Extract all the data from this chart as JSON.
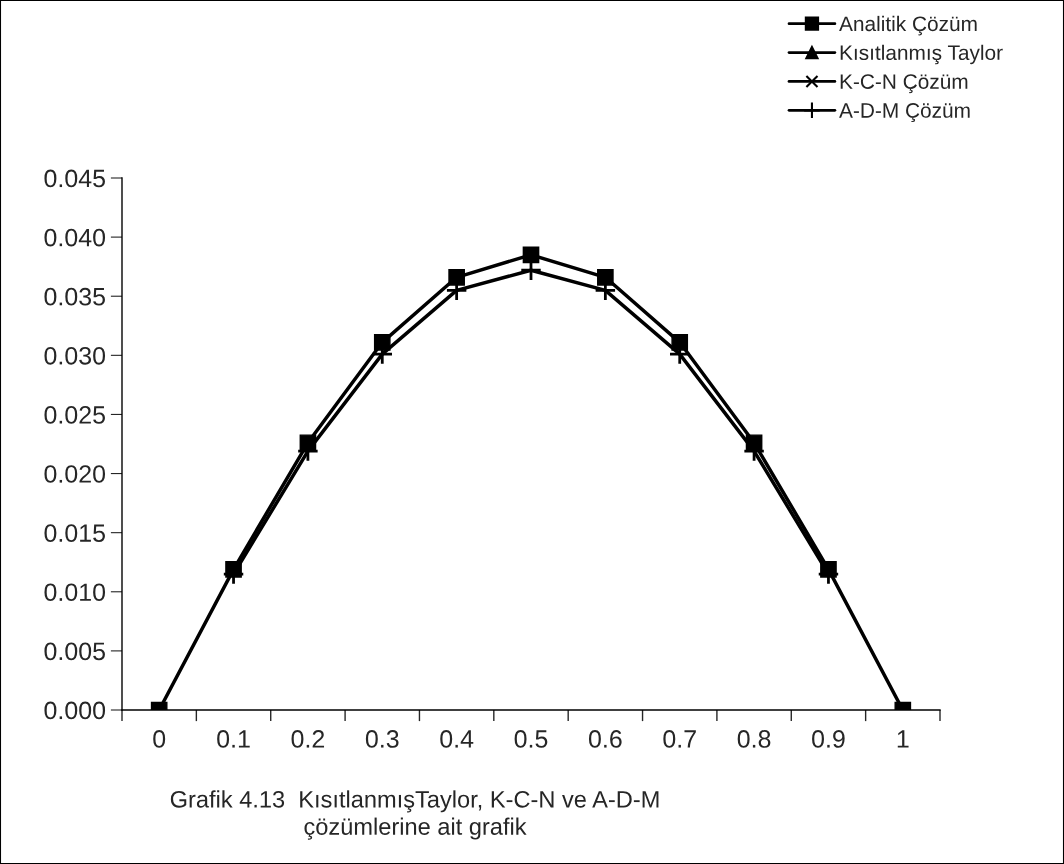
{
  "chart_data": {
    "type": "line",
    "categories": [
      "0",
      "0.1",
      "0.2",
      "0.3",
      "0.4",
      "0.5",
      "0.6",
      "0.7",
      "0.8",
      "0.9",
      "1"
    ],
    "series": [
      {
        "name": "Analitik Çözüm",
        "color": "#000000",
        "marker": "square",
        "values": [
          0.0,
          0.0119,
          0.0226,
          0.0311,
          0.0366,
          0.0385,
          0.0366,
          0.0311,
          0.0226,
          0.0119,
          0.0
        ]
      },
      {
        "name": "Kısıtlanmış Taylor",
        "color": "#000000",
        "marker": "triangle",
        "values": [
          null,
          null,
          null,
          null,
          null,
          null,
          null,
          null,
          null,
          null,
          null
        ]
      },
      {
        "name": "K-C-N Çözüm",
        "color": "#000000",
        "marker": "cross",
        "values": [
          null,
          null,
          null,
          null,
          null,
          null,
          null,
          null,
          null,
          null,
          null
        ]
      },
      {
        "name": "A-D-M Çözüm",
        "color": "#000000",
        "marker": "plus",
        "values": [
          null,
          0.0115,
          0.0219,
          0.0301,
          0.0355,
          0.0372,
          0.0355,
          0.0301,
          0.0219,
          0.0115,
          null
        ]
      }
    ],
    "ylim": [
      0,
      0.045
    ],
    "yticks": [
      {
        "value": 0,
        "label": "0.000"
      },
      {
        "value": 0.005,
        "label": "0.005"
      },
      {
        "value": 0.01,
        "label": "0.010"
      },
      {
        "value": 0.015,
        "label": "0.015"
      },
      {
        "value": 0.02,
        "label": "0.020"
      },
      {
        "value": 0.025,
        "label": "0.025"
      },
      {
        "value": 0.03,
        "label": "0.030"
      },
      {
        "value": 0.035,
        "label": "0.035"
      },
      {
        "value": 0.04,
        "label": "0.040"
      },
      {
        "value": 0.045,
        "label": "0.045"
      }
    ],
    "grid": false,
    "legend": "top right",
    "line_style": "solid",
    "annotations": [
      "Grafik 4.13  KısıtlanmışTaylor, K-C-N ve A-D-M\nçözümlerine ait grafik"
    ]
  }
}
